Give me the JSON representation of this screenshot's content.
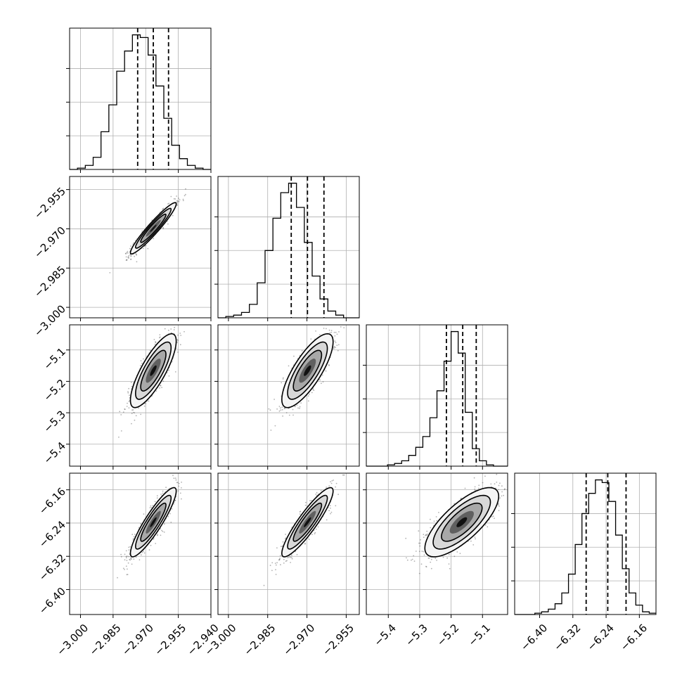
{
  "chart_data": {
    "type": "corner",
    "description_free": true,
    "grid": true,
    "quantile_lines": "dashed",
    "parameters": [
      {
        "range": [
          -3.005,
          -2.94
        ],
        "ticks": [
          -3.0,
          -2.985,
          -2.97,
          -2.955,
          -2.94
        ],
        "tick_labels": [
          "−3.000",
          "−2.985",
          "−2.970",
          "−2.955",
          "−2.940"
        ],
        "quantiles": [
          -2.9737,
          -2.9665,
          -2.9595
        ],
        "mean": -2.9665,
        "sd": 0.0043
      },
      {
        "range": [
          -3.004,
          -2.95
        ],
        "ticks": [
          -3.0,
          -2.985,
          -2.97,
          -2.955
        ],
        "tick_labels": [
          "−3.000",
          "−2.985",
          "−2.970",
          "−2.955"
        ],
        "quantiles": [
          -2.976,
          -2.9698,
          -2.9635
        ],
        "mean": -2.9698,
        "sd": 0.004
      },
      {
        "range": [
          -5.47,
          -5.02
        ],
        "ticks": [
          -5.4,
          -5.3,
          -5.2,
          -5.1
        ],
        "tick_labels": [
          "−5.4",
          "−5.3",
          "−5.2",
          "−5.1"
        ],
        "quantiles": [
          -5.215,
          -5.163,
          -5.12
        ],
        "mean": -5.166,
        "sd": 0.048
      },
      {
        "range": [
          -6.46,
          -6.12
        ],
        "ticks": [
          -6.4,
          -6.32,
          -6.24,
          -6.16
        ],
        "tick_labels": [
          "−6.40",
          "−6.32",
          "−6.24",
          "−6.16"
        ],
        "quantiles": [
          -6.288,
          -6.236,
          -6.192
        ],
        "mean": -6.238,
        "sd": 0.034
      }
    ],
    "histograms": [
      [
        0,
        1,
        3,
        9,
        28,
        48,
        73,
        88,
        100,
        98,
        85,
        62,
        38,
        18,
        8,
        3,
        1,
        0
      ],
      [
        0,
        1,
        2,
        4,
        10,
        26,
        50,
        74,
        93,
        100,
        82,
        56,
        31,
        14,
        5,
        2,
        0,
        0
      ],
      [
        0,
        0,
        0,
        1,
        2,
        4,
        8,
        14,
        22,
        36,
        56,
        78,
        100,
        84,
        40,
        13,
        4,
        1,
        0,
        0
      ],
      [
        0,
        0,
        0,
        1,
        2,
        4,
        8,
        16,
        30,
        52,
        75,
        90,
        100,
        98,
        84,
        59,
        34,
        16,
        7,
        2,
        1
      ]
    ],
    "correlations": {
      "1-0": 0.95,
      "2-0": 0.8,
      "2-1": 0.78,
      "3-0": 0.9,
      "3-1": 0.9,
      "3-2": 0.75
    }
  }
}
